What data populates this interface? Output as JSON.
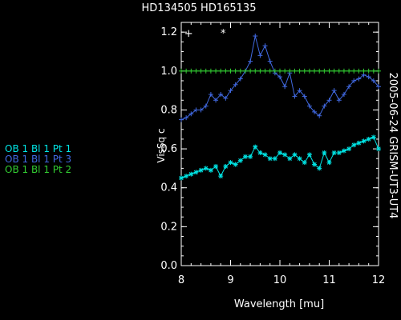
{
  "chart_data": {
    "type": "line",
    "title": "HD134505 HD165135",
    "xlabel": "Wavelength [mu]",
    "ylabel": "VisSq c",
    "side_label": "2005-06-24 GRISM-UT3-UT4",
    "xlim": [
      8,
      12
    ],
    "ylim": [
      0,
      1.25
    ],
    "x_ticks": [
      "8",
      "9",
      "10",
      "11",
      "12"
    ],
    "y_ticks": [
      "0.0",
      "0.2",
      "0.4",
      "0.6",
      "0.8",
      "1.0",
      "1.2"
    ],
    "grid": false,
    "legend_placement": "left",
    "x": [
      8.0,
      8.1,
      8.2,
      8.3,
      8.4,
      8.5,
      8.6,
      8.7,
      8.8,
      8.9,
      9.0,
      9.1,
      9.2,
      9.3,
      9.4,
      9.5,
      9.6,
      9.7,
      9.8,
      9.9,
      10.0,
      10.1,
      10.2,
      10.3,
      10.4,
      10.5,
      10.6,
      10.7,
      10.8,
      10.9,
      11.0,
      11.1,
      11.2,
      11.3,
      11.4,
      11.5,
      11.6,
      11.7,
      11.8,
      11.9,
      12.0
    ],
    "series": [
      {
        "name": "OB 1 Bl 1 Pt 1",
        "color": "#00e5e5",
        "marker": "*",
        "values": [
          0.45,
          0.46,
          0.47,
          0.48,
          0.49,
          0.5,
          0.49,
          0.51,
          0.46,
          0.51,
          0.53,
          0.52,
          0.54,
          0.56,
          0.56,
          0.61,
          0.58,
          0.57,
          0.55,
          0.55,
          0.58,
          0.57,
          0.55,
          0.57,
          0.55,
          0.53,
          0.57,
          0.52,
          0.5,
          0.58,
          0.53,
          0.58,
          0.58,
          0.59,
          0.6,
          0.62,
          0.63,
          0.64,
          0.65,
          0.66,
          0.6
        ]
      },
      {
        "name": "OB 1 Bl 1 Pt 3",
        "color": "#4169e1",
        "marker": "+",
        "values": [
          0.75,
          0.76,
          0.78,
          0.8,
          0.8,
          0.82,
          0.88,
          0.85,
          0.88,
          0.86,
          0.9,
          0.93,
          0.96,
          1.0,
          1.05,
          1.18,
          1.08,
          1.13,
          1.05,
          0.99,
          0.97,
          0.92,
          0.99,
          0.87,
          0.9,
          0.87,
          0.82,
          0.79,
          0.77,
          0.82,
          0.85,
          0.9,
          0.85,
          0.88,
          0.92,
          0.95,
          0.96,
          0.98,
          0.97,
          0.95,
          0.92
        ]
      },
      {
        "name": "OB 1 Bl 1 Pt 2",
        "color": "#32cd32",
        "marker": "+",
        "values": [
          1.0,
          1.0,
          1.0,
          1.0,
          1.0,
          1.0,
          1.0,
          1.0,
          1.0,
          1.0,
          1.0,
          1.0,
          1.0,
          1.0,
          1.0,
          1.0,
          1.0,
          1.0,
          1.0,
          1.0,
          1.0,
          1.0,
          1.0,
          1.0,
          1.0,
          1.0,
          1.0,
          1.0,
          1.0,
          1.0,
          1.0,
          1.0,
          1.0,
          1.0,
          1.0,
          1.0,
          1.0,
          1.0,
          1.0,
          1.0,
          1.0
        ]
      }
    ],
    "annotations": [
      {
        "text": "+",
        "x": 8.15,
        "y": 1.2
      },
      {
        "text": "*",
        "x": 8.85,
        "y": 1.2
      }
    ]
  }
}
